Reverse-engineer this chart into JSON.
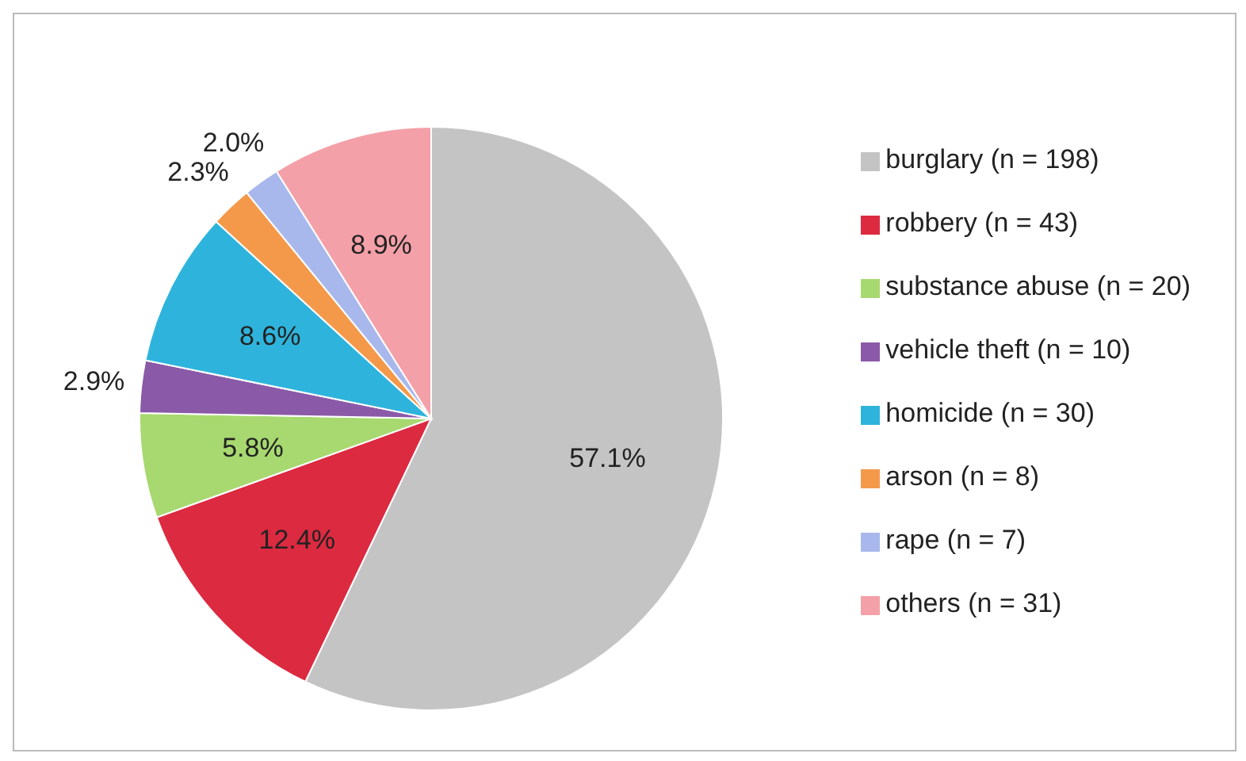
{
  "chart_data": {
    "type": "pie",
    "categories": [
      "burglary (n = 198)",
      "robbery (n = 43)",
      "substance abuse (n = 20)",
      "vehicle theft (n = 10)",
      "homicide (n = 30)",
      "arson (n = 8)",
      "rape (n = 7)",
      "others (n = 31)"
    ],
    "values": [
      57.1,
      12.4,
      5.8,
      2.9,
      8.6,
      2.3,
      2.0,
      8.9
    ],
    "value_labels": [
      "57.1%",
      "12.4%",
      "5.8%",
      "2.9%",
      "8.6%",
      "2.3%",
      "2.0%",
      "8.9%"
    ],
    "colors": [
      "#c4c4c4",
      "#dc2a40",
      "#a8d870",
      "#8a5aa8",
      "#2eb4dc",
      "#f4994a",
      "#a8b8ec",
      "#f4a0a8"
    ],
    "legend": "right"
  }
}
